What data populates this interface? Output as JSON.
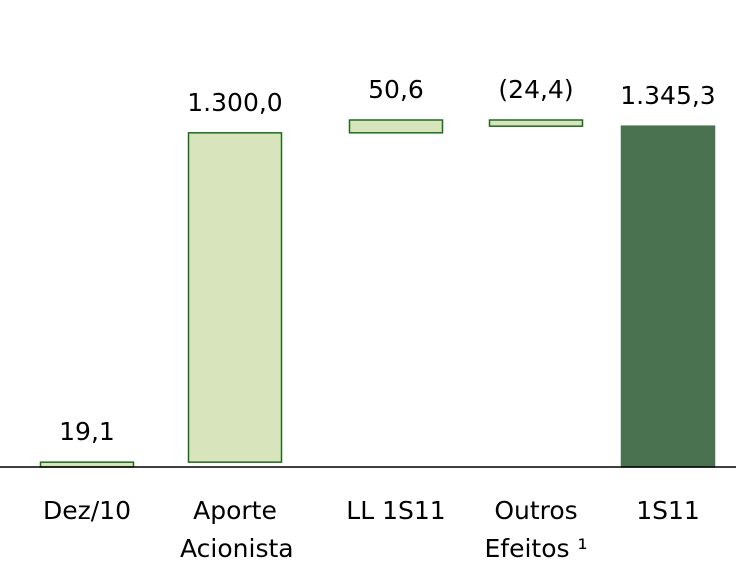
{
  "chart_data": {
    "type": "waterfall",
    "categories": [
      "Dez/10",
      "Aporte Acionista",
      "LL 1S11",
      "Outros Efeitos ¹",
      "1S11"
    ],
    "values": [
      19.1,
      1300.0,
      50.6,
      -24.4,
      1345.3
    ],
    "value_labels": [
      "19,1",
      "1.300,0",
      "50,6",
      "(24,4)",
      "1.345,3"
    ],
    "measure": [
      "relative",
      "relative",
      "relative",
      "relative",
      "total"
    ],
    "color": "#d8e4bc",
    "edge_color": "#1e6b1e",
    "total_color": "#4a7250"
  }
}
